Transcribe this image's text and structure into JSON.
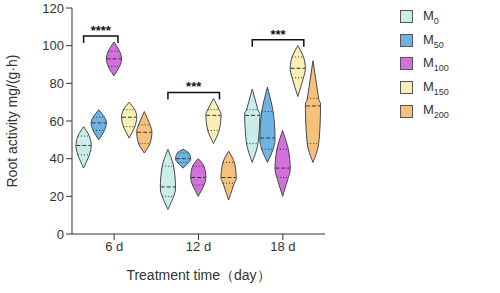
{
  "chart_data": {
    "type": "violin",
    "x_label": "Treatment time（day）",
    "y_label": "Root activity mg/(g·h)",
    "categories": [
      "6 d",
      "12 d",
      "18 d"
    ],
    "series": [
      {
        "name": "M0",
        "color": "#c9eeea",
        "min": [
          35,
          13,
          38
        ],
        "q1": [
          42,
          20,
          48
        ],
        "median": [
          47,
          25,
          63
        ],
        "q3": [
          52,
          36,
          66
        ],
        "max": [
          57,
          45,
          77
        ]
      },
      {
        "name": "M50",
        "color": "#6fb3e3",
        "min": [
          50,
          35,
          38
        ],
        "q1": [
          55,
          38,
          45
        ],
        "median": [
          59,
          40,
          51
        ],
        "q3": [
          62,
          43,
          65
        ],
        "max": [
          66,
          45,
          78
        ]
      },
      {
        "name": "M100",
        "color": "#d470dc",
        "min": [
          84,
          20,
          20
        ],
        "q1": [
          89,
          26,
          30
        ],
        "median": [
          93,
          30,
          35
        ],
        "q3": [
          97,
          36,
          45
        ],
        "max": [
          102,
          40,
          55
        ]
      },
      {
        "name": "M150",
        "color": "#f8efb6",
        "min": [
          51,
          48,
          73
        ],
        "q1": [
          57,
          55,
          83
        ],
        "median": [
          62,
          63,
          88
        ],
        "q3": [
          66,
          66,
          94
        ],
        "max": [
          70,
          72,
          100
        ]
      },
      {
        "name": "M200",
        "color": "#f4c27c",
        "min": [
          43,
          18,
          38
        ],
        "q1": [
          48,
          27,
          48
        ],
        "median": [
          54,
          30,
          68
        ],
        "q3": [
          58,
          38,
          72
        ],
        "max": [
          65,
          44,
          92
        ]
      }
    ],
    "ylim": [
      0,
      120
    ],
    "yticks": [
      0,
      20,
      40,
      60,
      80,
      100,
      120
    ],
    "legend": "right",
    "annotations": [
      {
        "category": "6 d",
        "from": "M0",
        "to": "M100",
        "label": "****"
      },
      {
        "category": "12 d",
        "from": "M0",
        "to": "M150",
        "label": "***"
      },
      {
        "category": "18 d",
        "from": "M0",
        "to": "M150",
        "label": "***"
      }
    ]
  }
}
